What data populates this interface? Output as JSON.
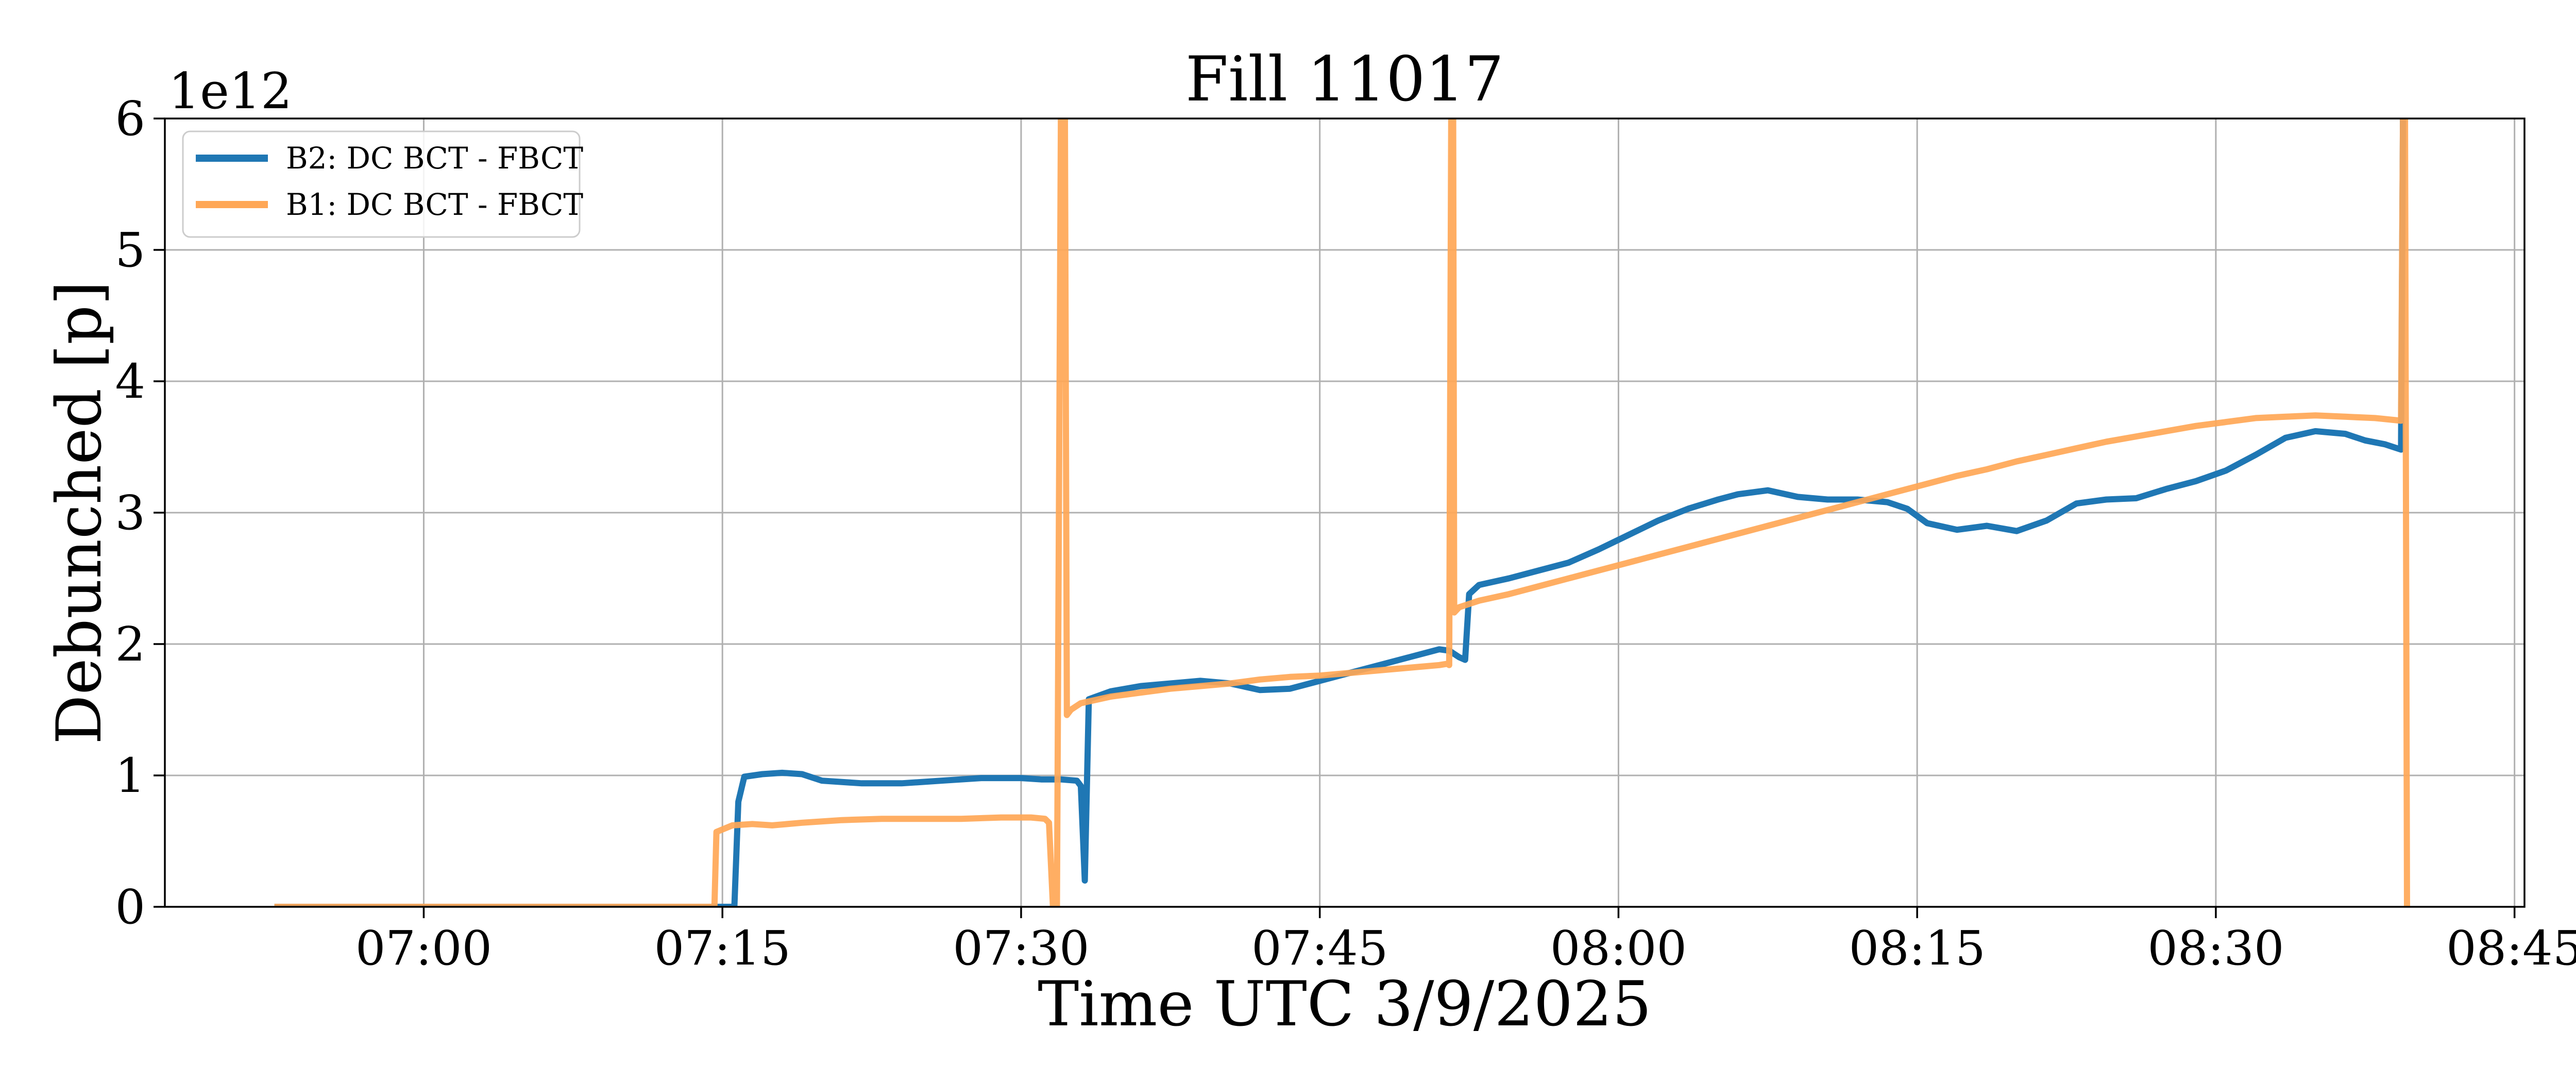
{
  "chart_data": {
    "type": "line",
    "title": "Fill 11017",
    "xlabel": "Time UTC 3/9/2025",
    "ylabel": "Debunched [p]",
    "y_offset_label": "1e12",
    "y_scale_factor": 1000000000000.0,
    "x_unit": "minutes after 07:00 UTC",
    "xlim": [
      -13,
      105.5
    ],
    "ylim": [
      0,
      6
    ],
    "x_ticks": [
      0,
      15,
      30,
      45,
      60,
      75,
      90,
      105
    ],
    "x_tick_labels": [
      "07:00",
      "07:15",
      "07:30",
      "07:45",
      "08:00",
      "08:15",
      "08:30",
      "08:45"
    ],
    "y_ticks": [
      0,
      1,
      2,
      3,
      4,
      5,
      6
    ],
    "y_tick_labels": [
      "0",
      "1",
      "2",
      "3",
      "4",
      "5",
      "6"
    ],
    "grid": true,
    "legend_position": "top-left",
    "series": [
      {
        "name": "B2: DC BCT - FBCT",
        "color": "#1f77b4",
        "x": [
          -7.5,
          15.6,
          15.8,
          16.1,
          17.0,
          18.0,
          19.0,
          20.0,
          22.0,
          24.0,
          26.0,
          28.0,
          30.0,
          31.0,
          32.0,
          32.8,
          33.0,
          33.2,
          33.4,
          34.5,
          36.0,
          37.5,
          39.0,
          40.5,
          42.0,
          43.5,
          45.0,
          46.5,
          48.0,
          49.5,
          51.0,
          51.5,
          52.0,
          52.3,
          52.5,
          53.0,
          54.5,
          56.0,
          57.5,
          59.0,
          60.5,
          62.0,
          63.5,
          65.0,
          66.0,
          67.5,
          69.0,
          70.5,
          72.0,
          73.5,
          74.5,
          75.5,
          77.0,
          78.5,
          80.0,
          81.5,
          83.0,
          84.5,
          86.0,
          87.5,
          89.0,
          90.5,
          92.0,
          93.5,
          95.0,
          96.5,
          97.5,
          98.5,
          99.3,
          99.4,
          99.5
        ],
        "y": [
          0,
          0,
          0.8,
          0.99,
          1.01,
          1.02,
          1.01,
          0.96,
          0.94,
          0.94,
          0.96,
          0.98,
          0.98,
          0.97,
          0.97,
          0.96,
          0.92,
          0.2,
          1.58,
          1.64,
          1.68,
          1.7,
          1.72,
          1.7,
          1.65,
          1.66,
          1.72,
          1.78,
          1.84,
          1.9,
          1.96,
          1.95,
          1.9,
          1.88,
          2.38,
          2.45,
          2.5,
          2.56,
          2.62,
          2.72,
          2.83,
          2.94,
          3.03,
          3.1,
          3.14,
          3.17,
          3.12,
          3.1,
          3.1,
          3.08,
          3.03,
          2.92,
          2.87,
          2.9,
          2.86,
          2.94,
          3.07,
          3.1,
          3.11,
          3.18,
          3.24,
          3.32,
          3.44,
          3.57,
          3.62,
          3.6,
          3.55,
          3.52,
          3.48,
          6.0,
          6.0
        ]
      },
      {
        "name": "B1: DC BCT - FBCT",
        "color": "#ffa756",
        "x": [
          -7.5,
          14.6,
          14.7,
          15.5,
          16.5,
          17.5,
          19.0,
          21.0,
          23.0,
          25.0,
          27.0,
          29.0,
          30.5,
          31.2,
          31.4,
          31.6,
          31.8,
          32.0,
          32.2,
          32.3,
          32.5,
          33.0,
          34.5,
          36.0,
          37.5,
          39.0,
          40.5,
          42.0,
          43.5,
          45.0,
          46.5,
          48.0,
          49.5,
          51.0,
          51.4,
          51.5,
          51.6,
          51.7,
          51.75,
          52.0,
          53.0,
          54.5,
          56.0,
          57.5,
          59.0,
          60.5,
          62.0,
          63.5,
          65.0,
          66.5,
          68.0,
          69.5,
          71.0,
          72.5,
          74.0,
          75.5,
          77.0,
          78.5,
          80.0,
          81.5,
          83.0,
          84.5,
          86.0,
          87.5,
          89.0,
          90.5,
          92.0,
          93.5,
          95.0,
          96.5,
          98.0,
          99.3,
          99.4,
          99.5,
          99.6
        ],
        "y": [
          0,
          0,
          0.57,
          0.62,
          0.63,
          0.62,
          0.64,
          0.66,
          0.67,
          0.67,
          0.67,
          0.68,
          0.68,
          0.67,
          0.64,
          0,
          0,
          6.0,
          6.0,
          1.46,
          1.5,
          1.55,
          1.6,
          1.63,
          1.66,
          1.68,
          1.7,
          1.73,
          1.75,
          1.76,
          1.78,
          1.8,
          1.82,
          1.84,
          1.85,
          1.84,
          6.0,
          6.0,
          2.24,
          2.28,
          2.33,
          2.38,
          2.44,
          2.5,
          2.56,
          2.62,
          2.68,
          2.74,
          2.8,
          2.86,
          2.92,
          2.98,
          3.04,
          3.1,
          3.16,
          3.22,
          3.28,
          3.33,
          3.39,
          3.44,
          3.49,
          3.54,
          3.58,
          3.62,
          3.66,
          3.69,
          3.72,
          3.73,
          3.74,
          3.73,
          3.72,
          3.7,
          6.0,
          6.0,
          0
        ]
      }
    ]
  }
}
